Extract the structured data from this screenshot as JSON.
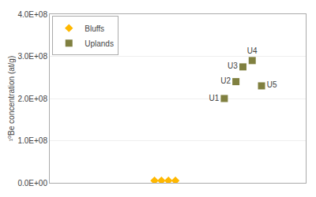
{
  "chart_data": {
    "type": "scatter",
    "y_label": "¹⁰Be concentration (at/g)",
    "series": [
      {
        "name": "Bluffs",
        "color": "#FFB800",
        "marker": "diamond",
        "x": [
          4.5,
          4.8,
          5.1,
          5.4
        ],
        "values": [
          5000000.0,
          5000000.0,
          5000000.0,
          5000000.0
        ]
      },
      {
        "name": "Uplands",
        "color": "#808040",
        "marker": "square",
        "x": [
          7.5,
          8.0,
          8.3,
          8.7,
          9.1
        ],
        "values": [
          200000000.0,
          240000000.0,
          275000000.0,
          290000000.0,
          230000000.0
        ],
        "labels": [
          "U1",
          "U2",
          "U3",
          "U4",
          "U5"
        ]
      }
    ],
    "xlim": [
      0,
      11
    ],
    "xticks": [
      2,
      4,
      6,
      8,
      10
    ],
    "ylim": [
      0,
      400000000.0
    ],
    "yticks": [
      {
        "value": 0,
        "label": "0.0E+00"
      },
      {
        "value": 100000000.0,
        "label": "1.0E+08"
      },
      {
        "value": 200000000.0,
        "label": "2.0E+08"
      },
      {
        "value": 300000000.0,
        "label": "3.0E+08"
      },
      {
        "value": 400000000.0,
        "label": "4.0E+08"
      }
    ],
    "tick_labels": "y",
    "grid": "y",
    "legend": "upper left"
  }
}
